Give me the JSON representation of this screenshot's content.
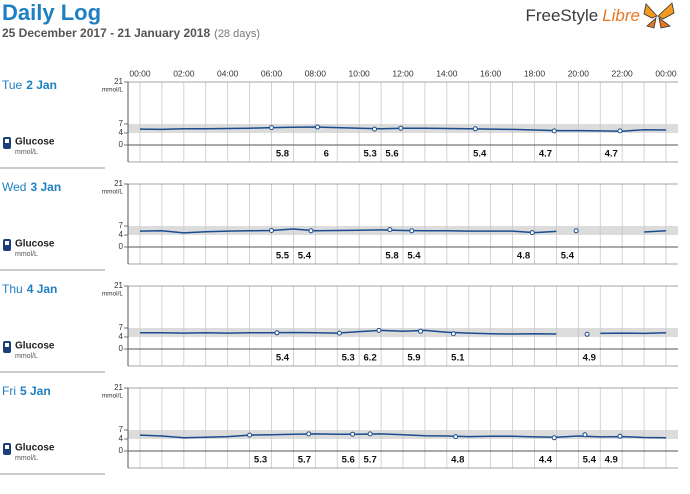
{
  "header": {
    "title": "Daily Log",
    "date_range": "25 December 2017 - 21 January 2018",
    "days_note": "(28 days)",
    "brand": "FreeStyle",
    "brand_accent": "Libre"
  },
  "axis": {
    "time_labels": [
      "00:00",
      "02:00",
      "04:00",
      "06:00",
      "08:00",
      "10:00",
      "12:00",
      "14:00",
      "16:00",
      "18:00",
      "20:00",
      "22:00",
      "00:00"
    ],
    "unit": "mmol/L",
    "ylim": [
      0,
      21
    ],
    "y_ticks": [
      0,
      4,
      7,
      21
    ],
    "target_range": [
      4,
      7
    ]
  },
  "days": [
    {
      "weekday": "Tue",
      "day": "2 Jan",
      "metric": "Glucose",
      "unit": "mmol/L",
      "readings": [
        {
          "hour": 6.0,
          "value": 5.8
        },
        {
          "hour": 8.1,
          "value": 6.0
        },
        {
          "hour": 10.7,
          "value": 5.3
        },
        {
          "hour": 11.9,
          "value": 5.6
        },
        {
          "hour": 15.3,
          "value": 5.4
        },
        {
          "hour": 18.9,
          "value": 4.7
        },
        {
          "hour": 21.9,
          "value": 4.7
        }
      ],
      "trace": [
        5.3,
        5.2,
        5.4,
        5.4,
        5.5,
        5.6,
        5.8,
        5.9,
        6.0,
        5.8,
        5.6,
        5.4,
        5.6,
        5.6,
        5.5,
        5.4,
        5.3,
        5.2,
        5.0,
        4.8,
        4.8,
        4.7,
        4.6,
        5.1,
        5.0
      ]
    },
    {
      "weekday": "Wed",
      "day": "3 Jan",
      "metric": "Glucose",
      "unit": "mmol/L",
      "readings": [
        {
          "hour": 6.0,
          "value": 5.5
        },
        {
          "hour": 7.8,
          "value": 5.4
        },
        {
          "hour": 11.4,
          "value": 5.8
        },
        {
          "hour": 12.4,
          "value": 5.4
        },
        {
          "hour": 17.9,
          "value": 4.8
        },
        {
          "hour": 19.9,
          "value": 5.4
        }
      ],
      "trace": [
        5.3,
        5.4,
        4.7,
        5.1,
        5.3,
        5.4,
        5.5,
        6.0,
        5.4,
        5.5,
        5.6,
        5.7,
        5.5,
        5.4,
        5.4,
        5.3,
        5.3,
        5.3,
        4.8,
        5.2,
        null,
        null,
        null,
        5.0,
        5.4
      ]
    },
    {
      "weekday": "Thu",
      "day": "4 Jan",
      "metric": "Glucose",
      "unit": "mmol/L",
      "readings": [
        {
          "hour": 6.25,
          "value": 5.4
        },
        {
          "hour": 9.1,
          "value": 5.3
        },
        {
          "hour": 10.9,
          "value": 6.2
        },
        {
          "hour": 12.8,
          "value": 5.9
        },
        {
          "hour": 14.3,
          "value": 5.1
        },
        {
          "hour": 20.4,
          "value": 4.9
        }
      ],
      "trace": [
        5.4,
        5.4,
        5.3,
        5.4,
        5.3,
        5.4,
        5.4,
        5.5,
        5.4,
        5.3,
        5.8,
        6.2,
        5.9,
        6.2,
        5.6,
        5.3,
        5.1,
        5.0,
        5.1,
        5.0,
        null,
        5.2,
        5.3,
        5.2,
        5.4
      ]
    },
    {
      "weekday": "Fri",
      "day": "5 Jan",
      "metric": "Glucose",
      "unit": "mmol/L",
      "readings": [
        {
          "hour": 5.0,
          "value": 5.3
        },
        {
          "hour": 7.7,
          "value": 5.7
        },
        {
          "hour": 9.7,
          "value": 5.6
        },
        {
          "hour": 10.5,
          "value": 5.7
        },
        {
          "hour": 14.4,
          "value": 4.8
        },
        {
          "hour": 18.9,
          "value": 4.4
        },
        {
          "hour": 20.3,
          "value": 5.4
        },
        {
          "hour": 21.9,
          "value": 4.9
        }
      ],
      "trace": [
        5.3,
        5.0,
        4.4,
        4.6,
        4.8,
        5.3,
        5.4,
        5.6,
        5.7,
        5.6,
        5.6,
        5.7,
        5.4,
        5.1,
        5.0,
        4.8,
        4.9,
        4.9,
        4.7,
        4.6,
        5.0,
        4.7,
        4.8,
        4.5,
        4.4
      ]
    }
  ]
}
